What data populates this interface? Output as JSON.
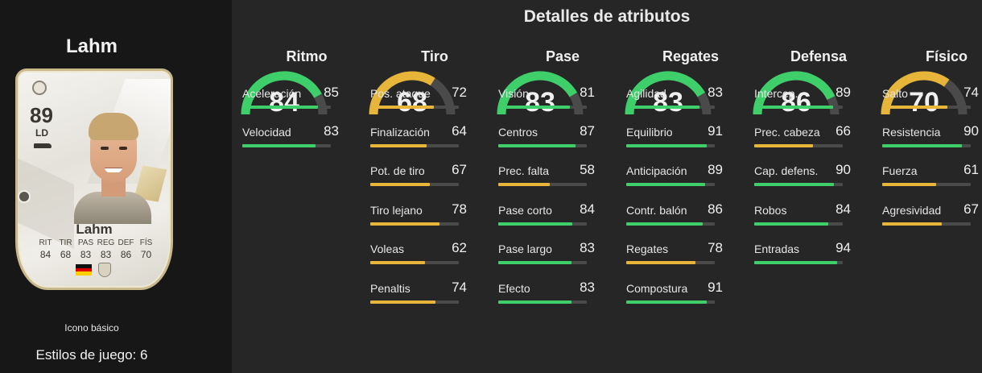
{
  "player": {
    "name": "Lahm",
    "card": {
      "rating": "89",
      "position": "LD",
      "name": "Lahm",
      "stat_labels": [
        "RIT",
        "TIR",
        "PAS",
        "REG",
        "DEF",
        "FÍS"
      ],
      "stat_values": [
        "84",
        "68",
        "83",
        "83",
        "86",
        "70"
      ]
    },
    "card_type": "Icono básico",
    "playstyles": "Estilos de juego: 6"
  },
  "section_title": "Detalles de atributos",
  "colors": {
    "high": "#3ecf6a",
    "mid": "#e6b53a",
    "track": "#4a4a4a"
  },
  "categories": [
    {
      "name": "Ritmo",
      "value": 84,
      "attributes": [
        {
          "name": "Aceleración",
          "value": 85
        },
        {
          "name": "Velocidad",
          "value": 83
        }
      ]
    },
    {
      "name": "Tiro",
      "value": 68,
      "attributes": [
        {
          "name": "Pos. ataque",
          "value": 72
        },
        {
          "name": "Finalización",
          "value": 64
        },
        {
          "name": "Pot. de tiro",
          "value": 67
        },
        {
          "name": "Tiro lejano",
          "value": 78
        },
        {
          "name": "Voleas",
          "value": 62
        },
        {
          "name": "Penaltis",
          "value": 74
        }
      ]
    },
    {
      "name": "Pase",
      "value": 83,
      "attributes": [
        {
          "name": "Visión",
          "value": 81
        },
        {
          "name": "Centros",
          "value": 87
        },
        {
          "name": "Prec. falta",
          "value": 58
        },
        {
          "name": "Pase corto",
          "value": 84
        },
        {
          "name": "Pase largo",
          "value": 83
        },
        {
          "name": "Efecto",
          "value": 83
        }
      ]
    },
    {
      "name": "Regates",
      "value": 83,
      "attributes": [
        {
          "name": "Agilidad",
          "value": 83
        },
        {
          "name": "Equilibrio",
          "value": 91
        },
        {
          "name": "Anticipación",
          "value": 89
        },
        {
          "name": "Contr. balón",
          "value": 86
        },
        {
          "name": "Regates",
          "value": 78
        },
        {
          "name": "Compostura",
          "value": 91
        }
      ]
    },
    {
      "name": "Defensa",
      "value": 86,
      "attributes": [
        {
          "name": "Intercep.",
          "value": 89
        },
        {
          "name": "Prec. cabeza",
          "value": 66
        },
        {
          "name": "Cap. defens.",
          "value": 90
        },
        {
          "name": "Robos",
          "value": 84
        },
        {
          "name": "Entradas",
          "value": 94
        }
      ]
    },
    {
      "name": "Físico",
      "value": 70,
      "attributes": [
        {
          "name": "Salto",
          "value": 74
        },
        {
          "name": "Resistencia",
          "value": 90
        },
        {
          "name": "Fuerza",
          "value": 61
        },
        {
          "name": "Agresividad",
          "value": 67
        }
      ]
    }
  ]
}
